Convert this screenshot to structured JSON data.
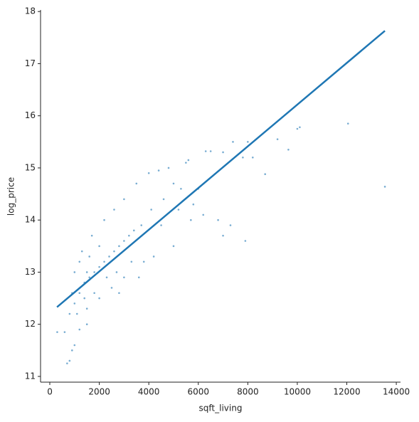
{
  "chart_data": {
    "type": "scatter",
    "xlabel": "sqft_living",
    "ylabel": "log_price",
    "xlim": [
      -374,
      14170
    ],
    "ylim": [
      10.89,
      18.03
    ],
    "xticks": [
      0,
      2000,
      4000,
      6000,
      8000,
      10000,
      12000,
      14000
    ],
    "yticks": [
      11,
      12,
      13,
      14,
      15,
      16,
      17,
      18
    ],
    "grid": false,
    "series": [
      {
        "type": "scatter",
        "color": "#1f77b4",
        "x": [
          12050,
          13540,
          10000,
          10100,
          9200,
          9640,
          8700,
          8000,
          7400,
          7000,
          7800,
          8200,
          6500,
          6300,
          7900,
          7300,
          7000,
          6800,
          6000,
          5500,
          5600,
          4800,
          4400,
          4000,
          5000,
          5200,
          5800,
          6200,
          4500,
          5000,
          3800,
          3600,
          4200,
          700,
          800,
          900,
          1000,
          600,
          300,
          1200,
          1500,
          800,
          1000,
          1200,
          1400,
          1600,
          1800,
          2000,
          2200,
          2400,
          2600,
          2800,
          3000,
          3200,
          3400,
          1300,
          1700,
          2200,
          2600,
          3000,
          3500,
          2000,
          2500,
          3000,
          2800,
          1500,
          1100,
          900,
          1000,
          1200,
          1500,
          1800,
          2000,
          2300,
          2700,
          1600,
          1400,
          3300,
          3700,
          4100,
          4600,
          5300,
          5700
        ],
        "values": [
          15.85,
          14.64,
          15.75,
          15.78,
          15.55,
          15.35,
          14.88,
          15.5,
          15.5,
          15.3,
          15.2,
          15.2,
          15.32,
          15.32,
          13.6,
          13.9,
          13.7,
          14.0,
          14.6,
          15.1,
          15.15,
          15.0,
          14.95,
          14.9,
          14.7,
          14.2,
          14.3,
          14.1,
          13.9,
          13.5,
          13.2,
          12.9,
          13.3,
          11.25,
          11.3,
          11.5,
          11.6,
          11.85,
          11.85,
          11.9,
          12.0,
          12.2,
          12.4,
          12.6,
          12.8,
          12.9,
          13.0,
          13.1,
          13.2,
          13.3,
          13.4,
          13.5,
          13.6,
          13.7,
          13.8,
          13.4,
          13.7,
          14.0,
          14.2,
          14.4,
          14.7,
          12.5,
          12.7,
          12.9,
          12.6,
          12.3,
          12.2,
          12.6,
          13.0,
          13.2,
          13.0,
          12.6,
          13.5,
          12.9,
          13.0,
          13.3,
          12.5,
          13.2,
          13.9,
          14.2,
          14.4,
          14.6,
          14.0
        ]
      },
      {
        "type": "line",
        "color": "#1f77b4",
        "x": [
          290,
          13540
        ],
        "values": [
          12.33,
          17.63
        ]
      }
    ]
  }
}
